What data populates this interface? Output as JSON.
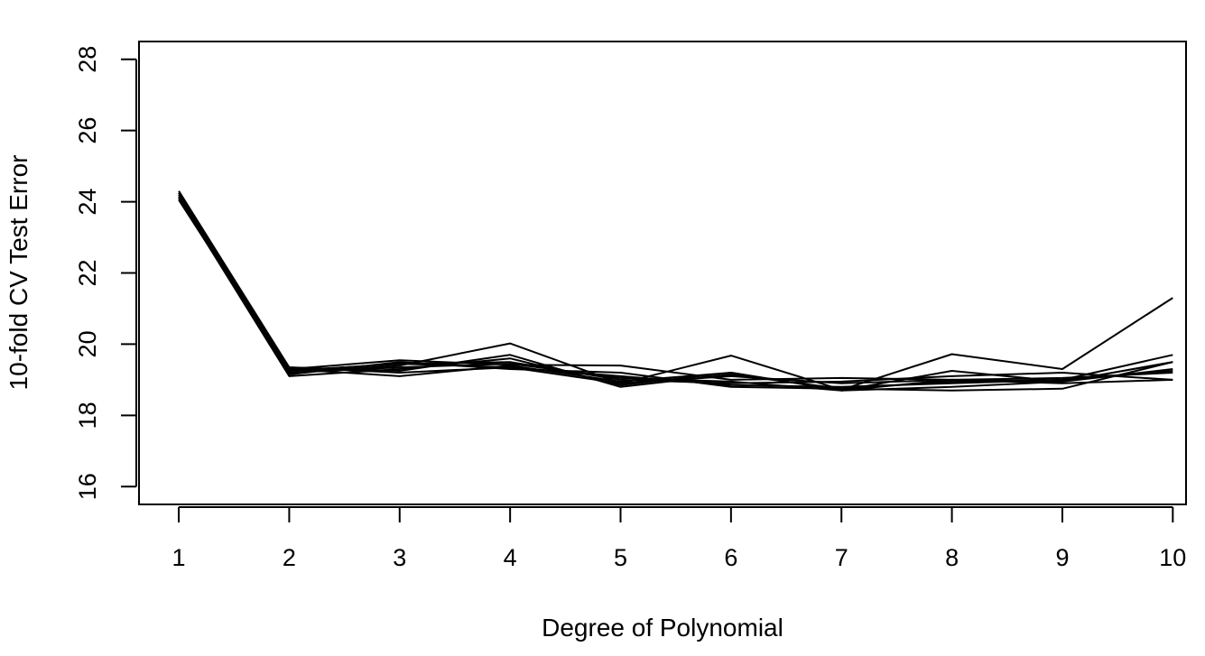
{
  "chart_data": {
    "type": "line",
    "title": "",
    "xlabel": "Degree of Polynomial",
    "ylabel": "10-fold CV Test Error",
    "x": [
      1,
      2,
      3,
      4,
      5,
      6,
      7,
      8,
      9,
      10
    ],
    "xticks": [
      "1",
      "2",
      "3",
      "4",
      "5",
      "6",
      "7",
      "8",
      "9",
      "10"
    ],
    "yticks": [
      "16",
      "18",
      "20",
      "22",
      "24",
      "26",
      "28"
    ],
    "ytick_values": [
      16,
      18,
      20,
      22,
      24,
      26,
      28
    ],
    "xlim": [
      0.64,
      10.12
    ],
    "ylim": [
      15.5,
      28.5
    ],
    "grid": false,
    "legend": "none",
    "line_color": "#000000",
    "series": [
      {
        "values": [
          24.25,
          19.2,
          19.4,
          20.02,
          18.9,
          19.68,
          18.72,
          19.72,
          19.3,
          21.3
        ]
      },
      {
        "values": [
          24.2,
          19.3,
          19.55,
          19.42,
          19.4,
          19.0,
          19.05,
          19.0,
          19.05,
          19.2
        ]
      },
      {
        "values": [
          24.1,
          19.1,
          19.3,
          19.6,
          18.85,
          19.2,
          18.7,
          19.25,
          18.95,
          19.5
        ]
      },
      {
        "values": [
          24.3,
          19.35,
          19.2,
          19.35,
          19.1,
          18.85,
          18.8,
          18.9,
          19.0,
          19.7
        ]
      },
      {
        "values": [
          24.05,
          19.25,
          19.45,
          19.5,
          19.0,
          18.9,
          18.95,
          19.1,
          19.2,
          19.0
        ]
      },
      {
        "values": [
          24.15,
          19.15,
          19.5,
          19.3,
          19.2,
          18.8,
          18.75,
          18.7,
          18.75,
          19.5
        ]
      },
      {
        "values": [
          24.2,
          19.3,
          19.1,
          19.4,
          18.95,
          19.2,
          18.7,
          19.0,
          18.95,
          19.3
        ]
      },
      {
        "values": [
          24.25,
          19.2,
          19.35,
          19.45,
          19.05,
          18.95,
          18.7,
          18.8,
          18.95,
          19.5
        ]
      },
      {
        "values": [
          24.1,
          19.35,
          19.25,
          19.7,
          18.8,
          19.15,
          18.75,
          18.95,
          19.0,
          19.25
        ]
      },
      {
        "values": [
          24.15,
          19.25,
          19.45,
          19.35,
          18.9,
          19.1,
          18.9,
          19.0,
          18.9,
          19.0
        ]
      }
    ]
  }
}
